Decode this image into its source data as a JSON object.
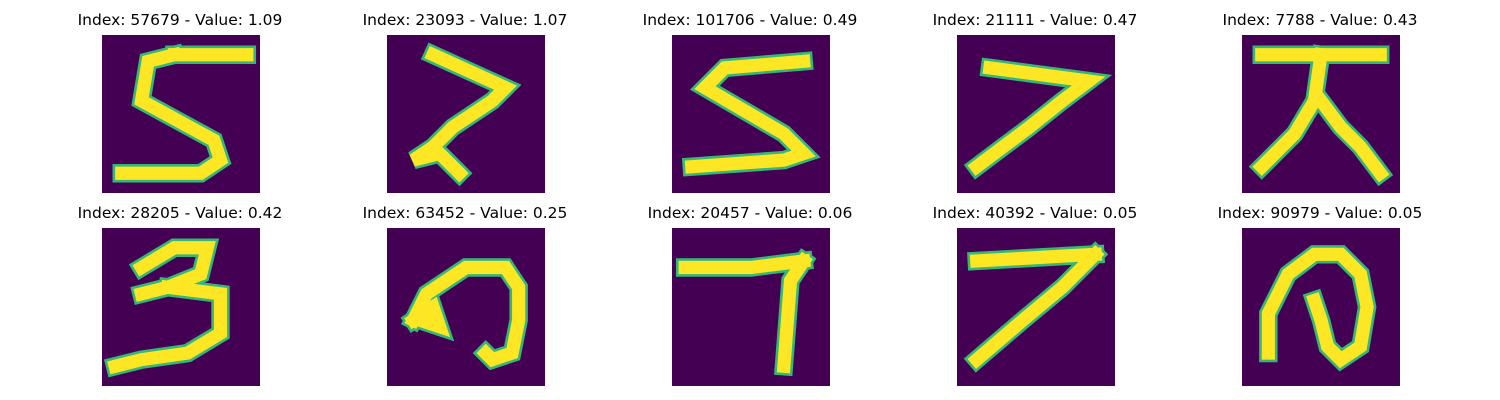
{
  "colors": {
    "background": "#440154",
    "stroke": "#fde725",
    "edge": "#35b779"
  },
  "panels": [
    {
      "title": "Index: 57679 - Value: 1.09",
      "depicts": "digit-5",
      "paths": [
        "M11 3 L22 3",
        "M11 3 L7 4 L6 10 L17 16 L18 19 L15 21 L3 21"
      ]
    },
    {
      "title": "Index: 23093 - Value: 1.07",
      "depicts": "digit-7",
      "paths": [
        "M7 3 L18 8 L16 10 L10 14 L7 17 L4 19 L8 18 L11 21"
      ]
    },
    {
      "title": "Index: 101706 - Value: 0.49",
      "depicts": "digit-5-rotated",
      "paths": [
        "M20 4 L8 5 L5 8 L17 15 L20 18 L17 19 L3 20"
      ]
    },
    {
      "title": "Index: 21111 - Value: 0.47",
      "depicts": "digit-7",
      "paths": [
        "M5 5 L20 7 L16 10 L11 14 L7 17 L3 20"
      ]
    },
    {
      "title": "Index: 7788 - Value: 0.43",
      "depicts": "glyph-ten-like",
      "paths": [
        "M3 3 L21 3",
        "M12 3 L11 10 L8 15 L3 20",
        "M12 10 L15 14 L18 17 L21 21"
      ]
    },
    {
      "title": "Index: 28205 - Value: 0.42",
      "depicts": "digit-3",
      "paths": [
        "M6 6 L11 3 L16 3 L15 7 L10 9 L6 10",
        "M10 9 L18 10 L18 16 L13 19 L6 20 L2 21"
      ]
    },
    {
      "title": "Index: 63452 - Value: 0.25",
      "depicts": "glyph-loop",
      "paths": [
        "M4 14 L6 10 L12 6 L18 6 L20 9 L20 14 L19 19 L16 20 L15 19",
        "M4 14 L7 12 L8 15 L5 14"
      ]
    },
    {
      "title": "Index: 20457 - Value: 0.06",
      "depicts": "digit-7",
      "paths": [
        "M2 6 L12 6 L20 5",
        "M20 5 L18 8 L17 21"
      ]
    },
    {
      "title": "Index: 40392 - Value: 0.05",
      "depicts": "digit-7",
      "paths": [
        "M3 5 L21 4",
        "M21 4 L16 9 L10 14 L3 20"
      ]
    },
    {
      "title": "Index: 90979 - Value: 0.05",
      "depicts": "glyph-spiral",
      "paths": [
        "M4 19 L4 13 L7 7 L11 4 L15 4 L18 7 L19 12 L18 18 L15 20 L13 18 L12 14 L11 11"
      ]
    }
  ]
}
